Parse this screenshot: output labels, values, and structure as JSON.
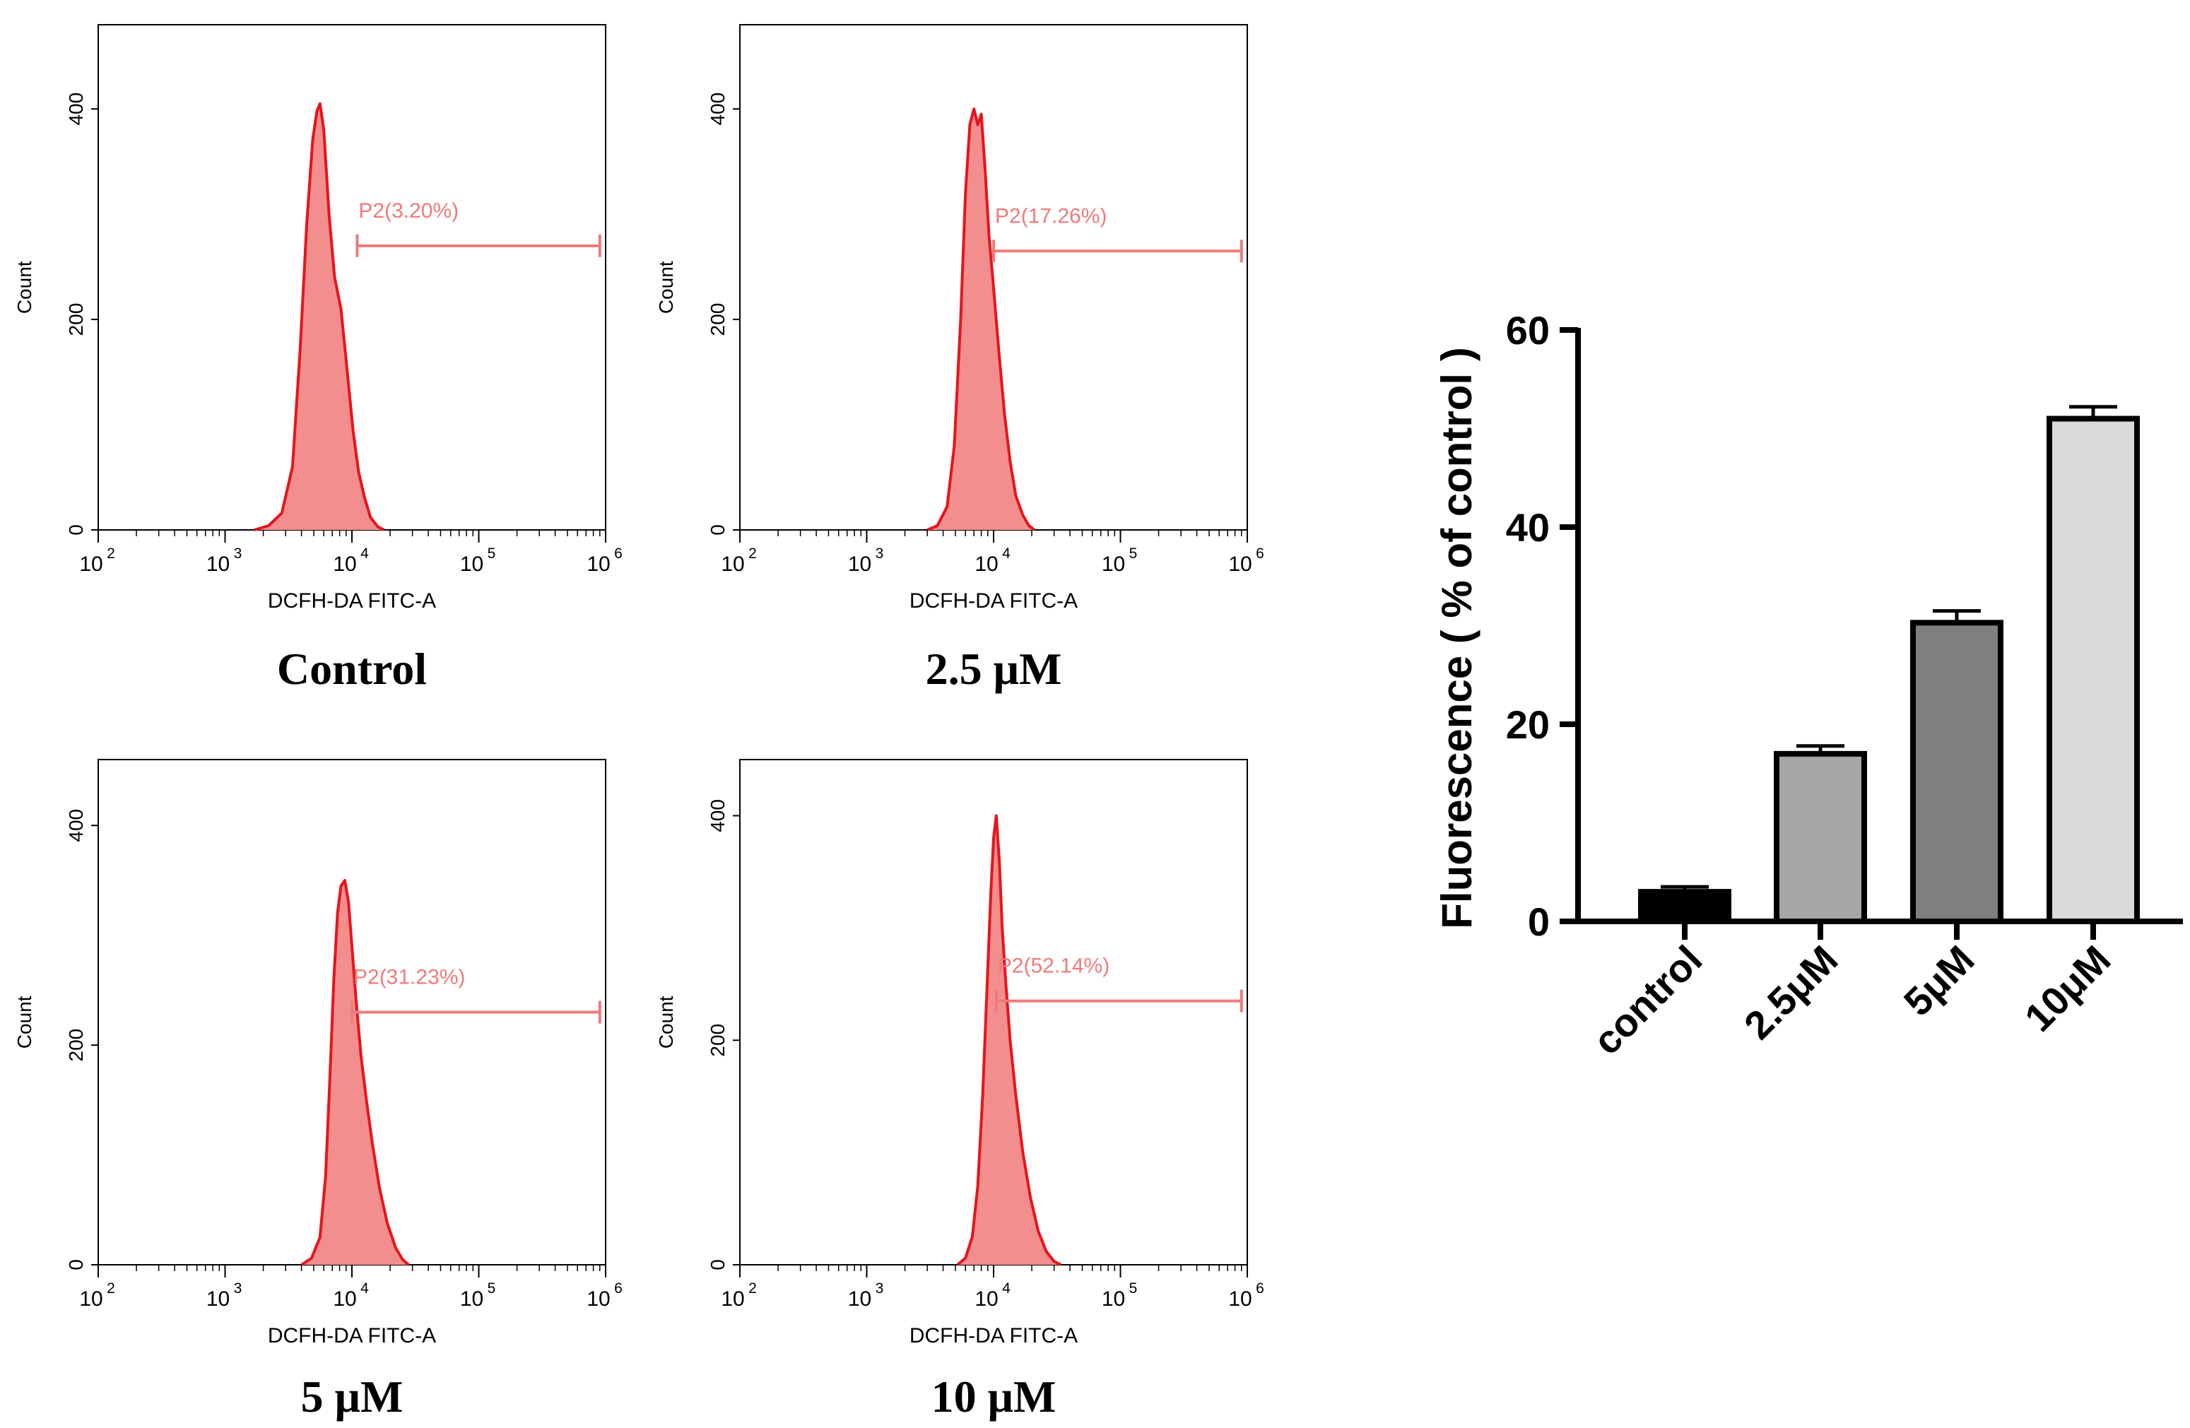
{
  "chart_data": [
    {
      "type": "histogram",
      "panel": "top-left",
      "caption": "Control",
      "xlabel": "DCFH-DA FITC-A",
      "ylabel": "Count",
      "xscale": "log",
      "xlim": [
        100,
        1000000
      ],
      "ylim": [
        0,
        480
      ],
      "yticks": [
        "0",
        "200",
        "400"
      ],
      "xticks": [
        "10",
        "10",
        "10",
        "10",
        "10"
      ],
      "xtick_exponents": [
        "2",
        "3",
        "4",
        "5",
        "6"
      ],
      "gate_label": "P2(3.20%)",
      "gate_percent": 3.2,
      "gate_range": [
        11000,
        900000
      ],
      "gate_y": 270,
      "peak": {
        "x": 5500,
        "count": 405
      },
      "curve": [
        [
          1700,
          0
        ],
        [
          2200,
          4
        ],
        [
          2800,
          16
        ],
        [
          3400,
          60
        ],
        [
          3900,
          170
        ],
        [
          4400,
          290
        ],
        [
          4900,
          370
        ],
        [
          5300,
          398
        ],
        [
          5600,
          405
        ],
        [
          6000,
          380
        ],
        [
          6600,
          300
        ],
        [
          7300,
          240
        ],
        [
          8200,
          210
        ],
        [
          9200,
          150
        ],
        [
          10200,
          95
        ],
        [
          11300,
          55
        ],
        [
          12500,
          32
        ],
        [
          14000,
          12
        ],
        [
          16000,
          3
        ],
        [
          18000,
          0
        ]
      ],
      "fill_color": "#f28e8e",
      "line_color": "#e8141b",
      "gate_color": "#f07a7a"
    },
    {
      "type": "histogram",
      "panel": "top-right",
      "caption": "2.5 μM",
      "xlabel": "DCFH-DA FITC-A",
      "ylabel": "Count",
      "xscale": "log",
      "xlim": [
        100,
        1000000
      ],
      "ylim": [
        0,
        480
      ],
      "yticks": [
        "0",
        "200",
        "400"
      ],
      "xticks": [
        "10",
        "10",
        "10",
        "10",
        "10"
      ],
      "xtick_exponents": [
        "2",
        "3",
        "4",
        "5",
        "6"
      ],
      "gate_label": "P2(17.26%)",
      "gate_percent": 17.26,
      "gate_range": [
        10000,
        900000
      ],
      "gate_y": 265,
      "peak": {
        "x": 7200,
        "count": 400
      },
      "curve": [
        [
          3000,
          0
        ],
        [
          3600,
          4
        ],
        [
          4300,
          22
        ],
        [
          4900,
          80
        ],
        [
          5500,
          200
        ],
        [
          6000,
          320
        ],
        [
          6500,
          385
        ],
        [
          7000,
          400
        ],
        [
          7500,
          385
        ],
        [
          8000,
          395
        ],
        [
          8600,
          340
        ],
        [
          9200,
          280
        ],
        [
          10000,
          230
        ],
        [
          11000,
          170
        ],
        [
          12200,
          110
        ],
        [
          13500,
          65
        ],
        [
          15000,
          32
        ],
        [
          17000,
          14
        ],
        [
          19000,
          4
        ],
        [
          21000,
          0
        ]
      ],
      "fill_color": "#f28e8e",
      "line_color": "#e8141b",
      "gate_color": "#f07a7a"
    },
    {
      "type": "histogram",
      "panel": "bottom-left",
      "caption": "5 μM",
      "xlabel": "DCFH-DA FITC-A",
      "ylabel": "Count",
      "xscale": "log",
      "xlim": [
        100,
        1000000
      ],
      "ylim": [
        0,
        460
      ],
      "yticks": [
        "0",
        "200",
        "400"
      ],
      "xticks": [
        "10",
        "10",
        "10",
        "10",
        "10"
      ],
      "xtick_exponents": [
        "2",
        "3",
        "4",
        "5",
        "6"
      ],
      "gate_label": "P2(31.23%)",
      "gate_percent": 31.23,
      "gate_range": [
        10000,
        900000
      ],
      "gate_y": 230,
      "peak": {
        "x": 8800,
        "count": 350
      },
      "curve": [
        [
          4000,
          0
        ],
        [
          4800,
          6
        ],
        [
          5600,
          25
        ],
        [
          6200,
          80
        ],
        [
          6700,
          170
        ],
        [
          7200,
          260
        ],
        [
          7700,
          320
        ],
        [
          8200,
          345
        ],
        [
          8800,
          350
        ],
        [
          9400,
          330
        ],
        [
          10000,
          290
        ],
        [
          10800,
          240
        ],
        [
          11800,
          190
        ],
        [
          13000,
          150
        ],
        [
          14500,
          110
        ],
        [
          16500,
          70
        ],
        [
          19000,
          38
        ],
        [
          22000,
          16
        ],
        [
          25000,
          5
        ],
        [
          28000,
          0
        ]
      ],
      "fill_color": "#f28e8e",
      "line_color": "#e8141b",
      "gate_color": "#f07a7a"
    },
    {
      "type": "histogram",
      "panel": "bottom-right",
      "caption": "10 μM",
      "xlabel": "DCFH-DA FITC-A",
      "ylabel": "Count",
      "xscale": "log",
      "xlim": [
        100,
        1000000
      ],
      "ylim": [
        0,
        450
      ],
      "yticks": [
        "0",
        "200",
        "400"
      ],
      "xticks": [
        "10",
        "10",
        "10",
        "10",
        "10"
      ],
      "xtick_exponents": [
        "2",
        "3",
        "4",
        "5",
        "6"
      ],
      "gate_label": "P2(52.14%)",
      "gate_percent": 52.14,
      "gate_range": [
        10500,
        900000
      ],
      "gate_y": 235,
      "peak": {
        "x": 10500,
        "count": 400
      },
      "curve": [
        [
          5200,
          0
        ],
        [
          6000,
          6
        ],
        [
          6800,
          25
        ],
        [
          7500,
          70
        ],
        [
          8200,
          150
        ],
        [
          8900,
          250
        ],
        [
          9500,
          330
        ],
        [
          10000,
          380
        ],
        [
          10500,
          400
        ],
        [
          11100,
          360
        ],
        [
          11700,
          300
        ],
        [
          12500,
          250
        ],
        [
          13500,
          200
        ],
        [
          15000,
          150
        ],
        [
          17000,
          100
        ],
        [
          19500,
          60
        ],
        [
          22500,
          30
        ],
        [
          26000,
          12
        ],
        [
          30000,
          3
        ],
        [
          34000,
          0
        ]
      ],
      "fill_color": "#f28e8e",
      "line_color": "#e8141b",
      "gate_color": "#f07a7a"
    },
    {
      "type": "bar",
      "panel": "right",
      "title": "",
      "xlabel": "",
      "ylabel": "Fluorescence ( % of control )",
      "categories": [
        "control",
        "2.5μM",
        "5μM",
        "10μM"
      ],
      "values": [
        3.0,
        17.0,
        30.3,
        51.0
      ],
      "errors": [
        0.5,
        0.8,
        1.2,
        1.2
      ],
      "colors": [
        "#000000",
        "#a6a6a6",
        "#7f7f7f",
        "#d9d9d9"
      ],
      "ylim": [
        0,
        60
      ],
      "yticks": [
        "0",
        "20",
        "40",
        "60"
      ],
      "grid": false
    }
  ]
}
